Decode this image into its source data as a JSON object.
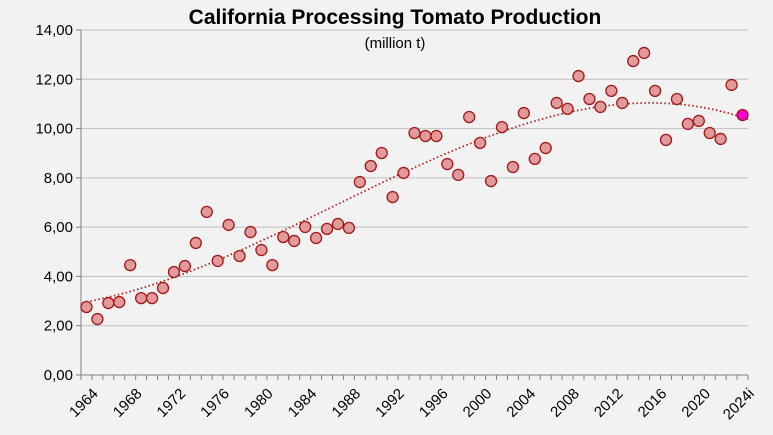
{
  "chart_data": {
    "type": "scatter",
    "title": "California Processing Tomato Production",
    "subtitle": "(million t)",
    "xlabel": "",
    "ylabel": "",
    "ylim": [
      0,
      14
    ],
    "y_ticks": [
      "0,00",
      "2,00",
      "4,00",
      "6,00",
      "8,00",
      "10,00",
      "12,00",
      "14,00"
    ],
    "x_tick_labels": [
      "1964",
      "1968",
      "1972",
      "1976",
      "1980",
      "1984",
      "1988",
      "1992",
      "1996",
      "2000",
      "2004",
      "2008",
      "2012",
      "2016",
      "2020",
      "2024i"
    ],
    "grid": "horizontal",
    "trendline": "polynomial, dotted",
    "colors": {
      "points": "#e39a9a",
      "point_edge": "#a01818",
      "highlight": "#ff00cc",
      "trend": "#b02020",
      "grid": "#bfbfbf"
    },
    "x": [
      "1964",
      "1965",
      "1966",
      "1967",
      "1968",
      "1969",
      "1970",
      "1971",
      "1972",
      "1973",
      "1974",
      "1975",
      "1976",
      "1977",
      "1978",
      "1979",
      "1980",
      "1981",
      "1982",
      "1983",
      "1984",
      "1985",
      "1986",
      "1987",
      "1988",
      "1989",
      "1990",
      "1991",
      "1992",
      "1993",
      "1994",
      "1995",
      "1996",
      "1997",
      "1998",
      "1999",
      "2000",
      "2001",
      "2002",
      "2003",
      "2004",
      "2005",
      "2006",
      "2007",
      "2008",
      "2009",
      "2010",
      "2011",
      "2012",
      "2013",
      "2014",
      "2015",
      "2016",
      "2017",
      "2018",
      "2019",
      "2020",
      "2021",
      "2022",
      "2023",
      "2024i"
    ],
    "values": [
      2.76,
      2.27,
      2.92,
      2.96,
      4.46,
      3.12,
      3.12,
      3.53,
      4.18,
      4.42,
      5.36,
      6.62,
      4.63,
      6.09,
      4.83,
      5.8,
      5.07,
      4.46,
      5.6,
      5.44,
      6.01,
      5.56,
      5.93,
      6.13,
      5.97,
      7.83,
      8.48,
      9.01,
      7.22,
      8.2,
      9.82,
      9.7,
      9.7,
      8.56,
      8.12,
      10.47,
      9.42,
      7.87,
      10.06,
      8.44,
      10.63,
      8.77,
      9.21,
      11.04,
      10.8,
      12.13,
      11.2,
      10.88,
      11.53,
      11.04,
      12.74,
      13.07,
      11.53,
      9.54,
      11.2,
      10.19,
      10.31,
      9.82,
      9.58,
      11.77,
      10.55
    ],
    "highlighted_point": "2024i"
  }
}
